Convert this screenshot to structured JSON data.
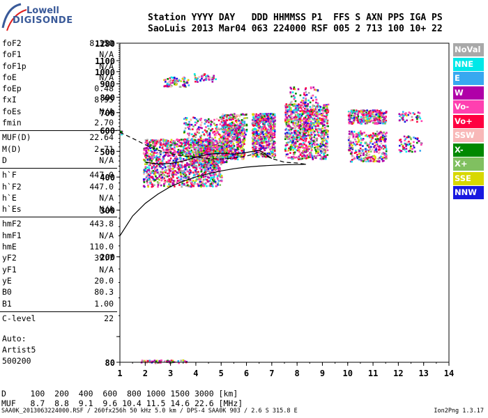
{
  "logo": {
    "line1": "Lowell",
    "line2": "DIGISONDE"
  },
  "header": {
    "labels": "Station YYYY DAY   DDD HHMMSS P1  FFS S AXN PPS IGA PS",
    "values": "SaoLuis 2013 Mar04 063 224000 RSF 005 2 713 100 10+ 22"
  },
  "params": [
    [
      {
        "label": "foF2",
        "value": "8.350"
      },
      {
        "label": "foF1",
        "value": "N/A"
      },
      {
        "label": "foF1p",
        "value": "N/A"
      },
      {
        "label": "foE",
        "value": "N/A"
      },
      {
        "label": "foEp",
        "value": "0.48"
      },
      {
        "label": "fxI",
        "value": "8.95"
      },
      {
        "label": "foEs",
        "value": "N/A"
      },
      {
        "label": "fmin",
        "value": "2.70"
      }
    ],
    [
      {
        "label": "MUF(D)",
        "value": "22.64"
      },
      {
        "label": "M(D)",
        "value": "2.71"
      },
      {
        "label": "D",
        "value": "N/A"
      }
    ],
    [
      {
        "label": "h`F",
        "value": "447.0"
      },
      {
        "label": "h`F2",
        "value": "447.0"
      },
      {
        "label": "h`E",
        "value": "N/A"
      },
      {
        "label": "h`Es",
        "value": "N/A"
      }
    ],
    [
      {
        "label": "hmF2",
        "value": "443.8"
      },
      {
        "label": "hmF1",
        "value": "N/A"
      },
      {
        "label": "hmE",
        "value": "110.0"
      },
      {
        "label": "yF2",
        "value": "39.7"
      },
      {
        "label": "yF1",
        "value": "N/A"
      },
      {
        "label": "yE",
        "value": "20.0"
      },
      {
        "label": "B0",
        "value": "80.3"
      },
      {
        "label": "B1",
        "value": "1.00"
      }
    ],
    [
      {
        "label": "C-level",
        "value": "22"
      }
    ]
  ],
  "auto": {
    "line1": "Auto:",
    "line2": "Artist5",
    "line3": "500200"
  },
  "legend": [
    {
      "name": "NoVal",
      "color": "#a8a8a8"
    },
    {
      "name": "NNE",
      "color": "#00e8e8"
    },
    {
      "name": "E",
      "color": "#38a8f0"
    },
    {
      "name": "W",
      "color": "#b000a8"
    },
    {
      "name": "Vo-",
      "color": "#ff40b0"
    },
    {
      "name": "Vo+",
      "color": "#ff0040"
    },
    {
      "name": "SSW",
      "color": "#f8b8b8"
    },
    {
      "name": "X-",
      "color": "#008800"
    },
    {
      "name": "X+",
      "color": "#80c060"
    },
    {
      "name": "SSE",
      "color": "#d8d800"
    },
    {
      "name": "NNW",
      "color": "#1818e0"
    }
  ],
  "muf_table": {
    "d_line": "D     100  200  400  600  800 1000 1500 3000 [km]",
    "muf_line": "MUF   8.7  8.8  9.1  9.6 10.4 11.5 14.6 22.6 [MHz]"
  },
  "footer": {
    "left": "SAA0K_2013063224000.RSF / 260fx256h 50 kHz 5.0 km / DPS-4 SAA0K 903 / 2.6 S 315.8 E",
    "right": "Ion2Png 1.3.17"
  },
  "chart_data": {
    "type": "scatter",
    "title": "",
    "xlabel": "",
    "ylabel": "",
    "xlim": [
      1,
      14
    ],
    "ylim": [
      80,
      1280
    ],
    "yscale": "log",
    "x_ticks": [
      "1",
      "2",
      "3",
      "4",
      "5",
      "6",
      "7",
      "8",
      "9",
      "10",
      "11",
      "12",
      "13",
      "14"
    ],
    "y_ticks": [
      {
        "v": 80,
        "label": "80"
      },
      {
        "v": 100,
        "label": ""
      },
      {
        "v": 200,
        "label": "200"
      },
      {
        "v": 300,
        "label": "300"
      },
      {
        "v": 400,
        "label": "400"
      },
      {
        "v": 500,
        "label": "500"
      },
      {
        "v": 600,
        "label": "600"
      },
      {
        "v": 700,
        "label": "700"
      },
      {
        "v": 800,
        "label": "800"
      },
      {
        "v": 900,
        "label": "900"
      },
      {
        "v": 1000,
        "label": "1000"
      },
      {
        "v": 1100,
        "label": "1100"
      },
      {
        "v": 1280,
        "label": "1280"
      }
    ],
    "echo_clusters": [
      {
        "f": [
          1.9,
          5.0
        ],
        "h": [
          370,
          560
        ],
        "n": 1300
      },
      {
        "f": [
          3.5,
          5.0
        ],
        "h": [
          430,
          680
        ],
        "n": 300
      },
      {
        "f": [
          4.1,
          5.2
        ],
        "h": [
          455,
          530
        ],
        "n": 250
      },
      {
        "f": [
          5.0,
          5.9
        ],
        "h": [
          470,
          640
        ],
        "n": 450
      },
      {
        "f": [
          5.0,
          6.0
        ],
        "h": [
          580,
          700
        ],
        "n": 160
      },
      {
        "f": [
          6.2,
          7.1
        ],
        "h": [
          480,
          700
        ],
        "n": 600
      },
      {
        "f": [
          7.5,
          9.2
        ],
        "h": [
          470,
          760
        ],
        "n": 950
      },
      {
        "f": [
          7.7,
          8.8
        ],
        "h": [
          760,
          880
        ],
        "n": 60
      },
      {
        "f": [
          10.0,
          11.5
        ],
        "h": [
          640,
          720
        ],
        "n": 280
      },
      {
        "f": [
          10.0,
          11.5
        ],
        "h": [
          460,
          600
        ],
        "n": 330
      },
      {
        "f": [
          12.0,
          12.9
        ],
        "h": [
          650,
          710
        ],
        "n": 40
      },
      {
        "f": [
          12.0,
          12.9
        ],
        "h": [
          500,
          575
        ],
        "n": 60
      },
      {
        "f": [
          2.7,
          3.7
        ],
        "h": [
          880,
          960
        ],
        "n": 80
      },
      {
        "f": [
          3.9,
          4.8
        ],
        "h": [
          920,
          990
        ],
        "n": 45
      },
      {
        "f": [
          1.8,
          3.6
        ],
        "h": [
          80,
          82
        ],
        "n": 60
      },
      {
        "f": [
          1.0,
          1.05
        ],
        "h": [
          580,
          600
        ],
        "n": 6
      }
    ],
    "profile_line": {
      "f": [
        1.0,
        1.5,
        2.0,
        2.5,
        3.0,
        3.5,
        4.0,
        4.5,
        5.0,
        5.5,
        6.0,
        6.5,
        7.0,
        7.5,
        8.0,
        8.2,
        8.35
      ],
      "h": [
        240,
        285,
        318,
        345,
        368,
        386,
        400,
        412,
        422,
        430,
        436,
        440,
        443,
        445,
        446,
        446.5,
        447
      ]
    },
    "trace_line": {
      "f": [
        1.0,
        1.5,
        2.0,
        2.5,
        3.0,
        3.5,
        4.0,
        4.5,
        5.0,
        5.5,
        6.0,
        6.5,
        7.0,
        7.5,
        8.0,
        8.35
      ],
      "h": [
        590,
        560,
        530,
        505,
        490,
        480,
        475,
        470,
        468,
        472,
        480,
        495,
        470,
        455,
        452,
        447
      ]
    },
    "o_trace": {
      "f": [
        2.0,
        2.5,
        3.0,
        3.5,
        4.0,
        4.5,
        5.0,
        5.5,
        6.0,
        6.5,
        7.0
      ],
      "h": [
        455,
        448,
        450,
        460,
        475,
        488,
        492,
        488,
        495,
        505,
        470
      ]
    }
  }
}
